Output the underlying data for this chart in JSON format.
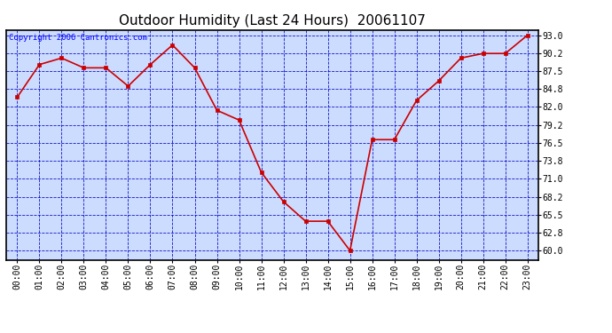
{
  "title": "Outdoor Humidity (Last 24 Hours)  20061107",
  "copyright_text": "Copyright 2006 Cantronics.com",
  "x_labels": [
    "00:00",
    "01:00",
    "02:00",
    "03:00",
    "04:00",
    "05:00",
    "06:00",
    "07:00",
    "08:00",
    "09:00",
    "10:00",
    "11:00",
    "12:00",
    "13:00",
    "14:00",
    "15:00",
    "16:00",
    "17:00",
    "18:00",
    "19:00",
    "20:00",
    "21:00",
    "22:00",
    "23:00"
  ],
  "y_values": [
    83.5,
    88.5,
    89.5,
    88.0,
    88.0,
    85.2,
    88.5,
    91.5,
    88.0,
    81.5,
    80.0,
    72.0,
    67.5,
    64.5,
    64.5,
    60.0,
    77.0,
    77.0,
    83.0,
    86.0,
    89.5,
    90.2,
    90.2,
    93.0
  ],
  "ylim_min": 58.6,
  "ylim_max": 93.8,
  "yticks": [
    60.0,
    62.8,
    65.5,
    68.2,
    71.0,
    73.8,
    76.5,
    79.2,
    82.0,
    84.8,
    87.5,
    90.2,
    93.0
  ],
  "line_color": "#cc0000",
  "marker_color": "#cc0000",
  "bg_color": "#ccdcff",
  "grid_color": "#0000bb",
  "border_color": "#000000",
  "title_fontsize": 11,
  "copyright_fontsize": 6.5,
  "tick_fontsize": 7,
  "marker_size": 3,
  "line_width": 1.2
}
